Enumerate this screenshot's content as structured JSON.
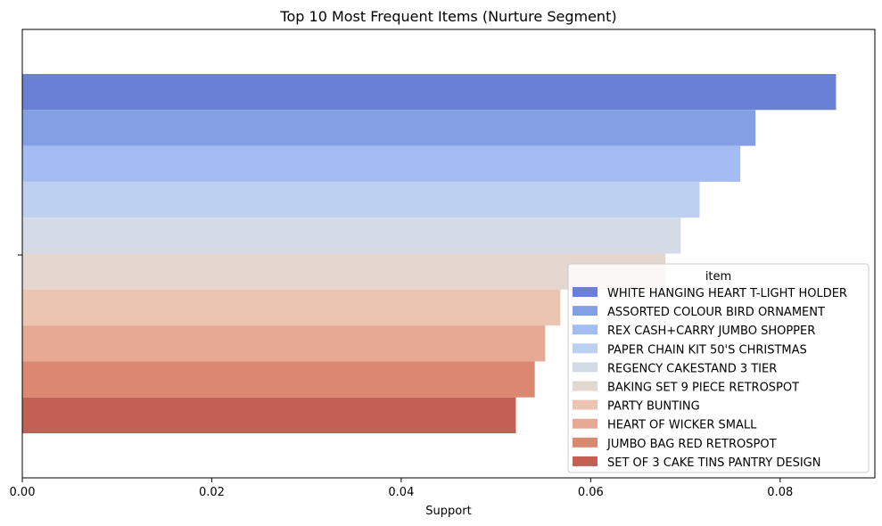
{
  "chart_data": {
    "type": "bar",
    "orientation": "horizontal",
    "title": "Top 10 Most Frequent Items (Nurture Segment)",
    "xlabel": "Support",
    "ylabel": "",
    "xlim": [
      0,
      0.09
    ],
    "x_ticks": [
      "0.00",
      "0.02",
      "0.04",
      "0.06",
      "0.08"
    ],
    "x_tick_values": [
      0,
      0.02,
      0.04,
      0.06,
      0.08
    ],
    "grid": false,
    "legend": {
      "title": "item",
      "placement": "lower-right"
    },
    "series": [
      {
        "name": "WHITE HANGING HEART T-LIGHT HOLDER",
        "value": 0.0859,
        "color": "#6a80d4"
      },
      {
        "name": "ASSORTED COLOUR BIRD ORNAMENT",
        "value": 0.0774,
        "color": "#84a0e5"
      },
      {
        "name": "REX CASH+CARRY JUMBO SHOPPER",
        "value": 0.0758,
        "color": "#a3bcf2"
      },
      {
        "name": "PAPER CHAIN KIT 50'S CHRISTMAS",
        "value": 0.0715,
        "color": "#bed0f1"
      },
      {
        "name": "REGENCY CAKESTAND 3 TIER",
        "value": 0.0695,
        "color": "#d4dae6"
      },
      {
        "name": "BAKING SET 9 PIECE RETROSPOT",
        "value": 0.0679,
        "color": "#e4d7cf"
      },
      {
        "name": "PARTY BUNTING",
        "value": 0.0568,
        "color": "#ecc5b2"
      },
      {
        "name": "HEART OF WICKER SMALL",
        "value": 0.0552,
        "color": "#e7a993"
      },
      {
        "name": "JUMBO BAG RED RETROSPOT",
        "value": 0.0541,
        "color": "#db8873"
      },
      {
        "name": "SET OF 3 CAKE TINS PANTRY DESIGN",
        "value": 0.0521,
        "color": "#c36053"
      }
    ]
  }
}
